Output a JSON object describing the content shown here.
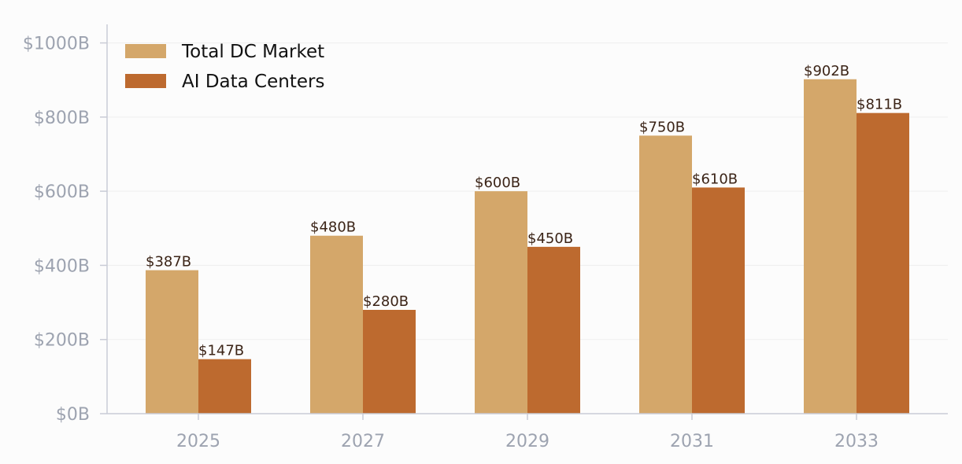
{
  "chart_data": {
    "type": "bar",
    "title": "",
    "xlabel": "",
    "ylabel": "",
    "categories": [
      "2025",
      "2027",
      "2029",
      "2031",
      "2033"
    ],
    "series": [
      {
        "name": "Total DC Market",
        "values": [
          387,
          480,
          600,
          750,
          902
        ],
        "labels": [
          "$387B",
          "$480B",
          "$600B",
          "$750B",
          "$902B"
        ],
        "color": "#d4a76a"
      },
      {
        "name": "AI Data Centers",
        "values": [
          147,
          280,
          450,
          610,
          811
        ],
        "labels": [
          "$147B",
          "$280B",
          "$450B",
          "$610B",
          "$811B"
        ],
        "color": "#bd6a2f"
      }
    ],
    "ylim": [
      0,
      1050
    ],
    "yticks": [
      0,
      200,
      400,
      600,
      800,
      1000
    ],
    "ytick_labels": [
      "$0B",
      "$200B",
      "$400B",
      "$600B",
      "$800B",
      "$1000B"
    ],
    "grid": true,
    "legend_position": "top-left"
  },
  "colors": {
    "background": "#fcfcfc",
    "axis": "#c9ccd6",
    "grid": "#efefef",
    "tick_text": "#9da3b0",
    "label_text": "#3b2417",
    "legend_text": "#111111"
  }
}
